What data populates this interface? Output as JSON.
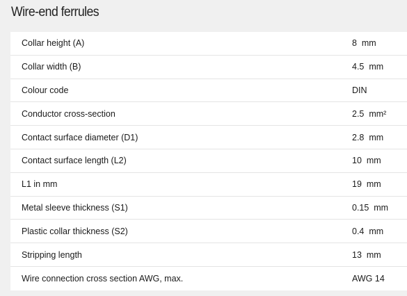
{
  "title": "Wire-end ferrules",
  "specs": [
    {
      "label": "Collar height (A)",
      "value": "8  mm"
    },
    {
      "label": "Collar width (B)",
      "value": "4.5  mm"
    },
    {
      "label": "Colour code",
      "value": "DIN"
    },
    {
      "label": "Conductor cross-section",
      "value": "2.5  mm²"
    },
    {
      "label": "Contact surface diameter (D1)",
      "value": "2.8  mm"
    },
    {
      "label": "Contact surface length (L2)",
      "value": "10  mm"
    },
    {
      "label": "L1 in mm",
      "value": "19  mm"
    },
    {
      "label": "Metal sleeve thickness (S1)",
      "value": "0.15  mm"
    },
    {
      "label": "Plastic collar thickness (S2)",
      "value": "0.4  mm"
    },
    {
      "label": "Stripping length",
      "value": "13  mm"
    },
    {
      "label": "Wire connection cross section AWG, max.",
      "value": "AWG 14"
    }
  ]
}
